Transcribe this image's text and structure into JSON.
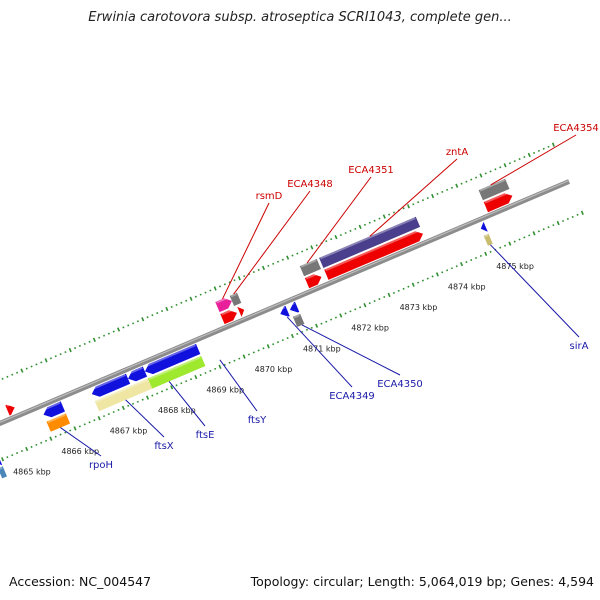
{
  "title": "Erwinia carotovora subsp. atroseptica SCRI1043, complete gen...",
  "footer": {
    "accession": "Accession: NC_004547",
    "summary": "Topology: circular; Length: 5,064,019 bp; Genes: 4,594"
  },
  "colors": {
    "backbone": "#8c8c8c",
    "tick_dots": "#2f8f2f",
    "label_red": "#cc0000",
    "label_blue": "#1a1aa8",
    "feature_red": "#ee0000",
    "feature_blue": "#1111dd",
    "feature_gray": "#777777",
    "feature_purple": "#4a3f8c",
    "feature_pink": "#e8209a",
    "feature_orange": "#ff8c00",
    "feature_cream": "#efe6a4",
    "feature_green": "#9ee82e",
    "feature_khaki": "#c8bc6e",
    "feature_steel": "#4a86b8"
  },
  "ticks": [
    {
      "label": "4865 kbp",
      "pos": 4865
    },
    {
      "label": "4866 kbp",
      "pos": 4866
    },
    {
      "label": "4867 kbp",
      "pos": 4867
    },
    {
      "label": "4868 kbp",
      "pos": 4868
    },
    {
      "label": "4869 kbp",
      "pos": 4869
    },
    {
      "label": "4870 kbp",
      "pos": 4870
    },
    {
      "label": "4871 kbp",
      "pos": 4871
    },
    {
      "label": "4872 kbp",
      "pos": 4872
    },
    {
      "label": "4873 kbp",
      "pos": 4873
    },
    {
      "label": "4874 kbp",
      "pos": 4874
    },
    {
      "label": "4875 kbp",
      "pos": 4875
    }
  ],
  "features": [
    {
      "track": -3,
      "start": 4864.35,
      "end": 4864.45,
      "color": "feature_blue",
      "dir": -1
    },
    {
      "track": -4,
      "start": 4864.35,
      "end": 4864.45,
      "color": "feature_steel",
      "dir": 0
    },
    {
      "track": 1,
      "start": 4864.95,
      "end": 4865.1,
      "color": "feature_red",
      "dir": 1
    },
    {
      "track": -1,
      "start": 4865.55,
      "end": 4865.95,
      "color": "feature_blue",
      "dir": -1
    },
    {
      "track": -2,
      "start": 4865.55,
      "end": 4865.95,
      "color": "feature_orange",
      "dir": 0
    },
    {
      "track": -1,
      "start": 4866.55,
      "end": 4867.3,
      "color": "feature_blue",
      "dir": -1
    },
    {
      "track": -2,
      "start": 4866.55,
      "end": 4867.65,
      "color": "feature_cream",
      "dir": 0
    },
    {
      "track": -1,
      "start": 4867.3,
      "end": 4867.65,
      "color": "feature_blue",
      "dir": -1
    },
    {
      "track": -1,
      "start": 4867.65,
      "end": 4868.75,
      "color": "feature_blue",
      "dir": -1
    },
    {
      "track": -2,
      "start": 4867.65,
      "end": 4868.75,
      "color": "feature_green",
      "dir": 0
    },
    {
      "track": 2,
      "start": 4869.4,
      "end": 4869.7,
      "color": "feature_pink",
      "dir": 1
    },
    {
      "track": 1,
      "start": 4869.4,
      "end": 4869.7,
      "color": "feature_red",
      "dir": 1
    },
    {
      "track": 2,
      "start": 4869.7,
      "end": 4869.85,
      "color": "feature_gray",
      "dir": 0
    },
    {
      "track": 1,
      "start": 4869.75,
      "end": 4869.85,
      "color": "feature_red",
      "dir": 1
    },
    {
      "track": -1,
      "start": 4870.45,
      "end": 4870.6,
      "color": "feature_blue",
      "dir": -1
    },
    {
      "track": -1,
      "start": 4870.65,
      "end": 4870.8,
      "color": "feature_blue",
      "dir": -1
    },
    {
      "track": -2,
      "start": 4870.65,
      "end": 4870.8,
      "color": "feature_gray",
      "dir": 0
    },
    {
      "track": 2,
      "start": 4871.15,
      "end": 4871.5,
      "color": "feature_gray",
      "dir": 0
    },
    {
      "track": 1,
      "start": 4871.15,
      "end": 4871.45,
      "color": "feature_red",
      "dir": 1
    },
    {
      "track": 2,
      "start": 4871.55,
      "end": 4873.55,
      "color": "feature_purple",
      "dir": 0
    },
    {
      "track": 1,
      "start": 4871.55,
      "end": 4873.55,
      "color": "feature_red",
      "dir": 1
    },
    {
      "track": -1,
      "start": 4874.6,
      "end": 4874.7,
      "color": "feature_blue",
      "dir": -1
    },
    {
      "track": -2,
      "start": 4874.6,
      "end": 4874.7,
      "color": "feature_khaki",
      "dir": 0
    },
    {
      "track": 2,
      "start": 4874.85,
      "end": 4875.4,
      "color": "feature_gray",
      "dir": 0
    },
    {
      "track": 1,
      "start": 4874.85,
      "end": 4875.4,
      "color": "feature_red",
      "dir": 1
    }
  ],
  "labels": [
    {
      "text": "rpoH",
      "side": "below",
      "color": "label_blue",
      "pos": 4865.75,
      "track": -2,
      "tx": 101,
      "ty": 468
    },
    {
      "text": "ftsX",
      "side": "below",
      "color": "label_blue",
      "pos": 4867.1,
      "track": -2,
      "tx": 164,
      "ty": 449
    },
    {
      "text": "ftsE",
      "side": "below",
      "color": "label_blue",
      "pos": 4868.0,
      "track": -2,
      "tx": 205,
      "ty": 438
    },
    {
      "text": "ftsY",
      "side": "below",
      "color": "label_blue",
      "pos": 4869.05,
      "track": -2,
      "tx": 257,
      "ty": 423
    },
    {
      "text": "ECA4349",
      "side": "below",
      "color": "label_blue",
      "pos": 4870.55,
      "track": -1,
      "tx": 352,
      "ty": 399
    },
    {
      "text": "ECA4350",
      "side": "below",
      "color": "label_blue",
      "pos": 4870.75,
      "track": -2,
      "tx": 400,
      "ty": 387
    },
    {
      "text": "sirA",
      "side": "below",
      "color": "label_blue",
      "pos": 4874.65,
      "track": -2,
      "tx": 579,
      "ty": 349
    },
    {
      "text": "rsmD",
      "side": "above",
      "color": "label_red",
      "pos": 4869.55,
      "track": 2,
      "tx": 269,
      "ty": 199
    },
    {
      "text": "ECA4348",
      "side": "above",
      "color": "label_red",
      "pos": 4869.78,
      "track": 2,
      "tx": 310,
      "ty": 187
    },
    {
      "text": "ECA4351",
      "side": "above",
      "color": "label_red",
      "pos": 4871.3,
      "track": 2,
      "tx": 371,
      "ty": 173
    },
    {
      "text": "zntA",
      "side": "above",
      "color": "label_red",
      "pos": 4872.6,
      "track": 2,
      "tx": 457,
      "ty": 155
    },
    {
      "text": "ECA4354",
      "side": "above",
      "color": "label_red",
      "pos": 4875.1,
      "track": 2,
      "tx": 576,
      "ty": 131
    }
  ]
}
